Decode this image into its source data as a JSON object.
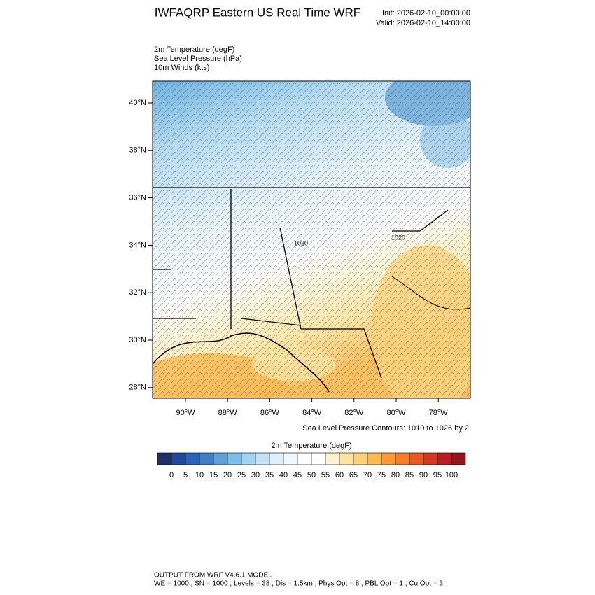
{
  "header": {
    "title": "IWFAQRP Eastern US Real Time WRF",
    "init": "Init: 2026-02-10_00:00:00",
    "valid": "Valid: 2026-02-10_14:00:00"
  },
  "fields": [
    "2m Temperature   (degF)",
    "Sea Level Pressure   (hPa)",
    "10m Winds   (kts)"
  ],
  "map": {
    "lat_labels": [
      "40°N",
      "38°N",
      "36°N",
      "34°N",
      "32°N",
      "30°N",
      "28°N"
    ],
    "lon_labels": [
      "90°W",
      "88°W",
      "86°W",
      "84°W",
      "82°W",
      "80°W",
      "78°W"
    ],
    "contour_labels": [
      "1020",
      "1020"
    ],
    "contour_note": "Sea Level Pressure Contours: 1010 to 1026 by 2"
  },
  "colorbar": {
    "title": "2m Temperature  (degF)",
    "labels": [
      0,
      5,
      10,
      15,
      20,
      25,
      30,
      35,
      40,
      45,
      50,
      55,
      60,
      65,
      70,
      75,
      80,
      85,
      90,
      95,
      100
    ],
    "colors": [
      "#1d3163",
      "#1f4a99",
      "#2a63b8",
      "#3e80c6",
      "#5ea2d6",
      "#7dbde6",
      "#a2d3f0",
      "#c3e3f5",
      "#e0f0fa",
      "#f1f7fc",
      "#ffffff",
      "#ffffff",
      "#fdf1d0",
      "#fde3a3",
      "#fdd17a",
      "#fbb954",
      "#f99b36",
      "#f67d2a",
      "#e95a26",
      "#d43726",
      "#b81e24",
      "#93141c"
    ]
  },
  "footer": [
    "OUTPUT FROM WRF V4.6.1 MODEL",
    "WE = 1000 ; SN = 1000 ; Levels = 38 ; Dis = 1.5km ; Phys Opt = 8 ; PBL Opt = 1 ; Cu Opt = 3"
  ]
}
